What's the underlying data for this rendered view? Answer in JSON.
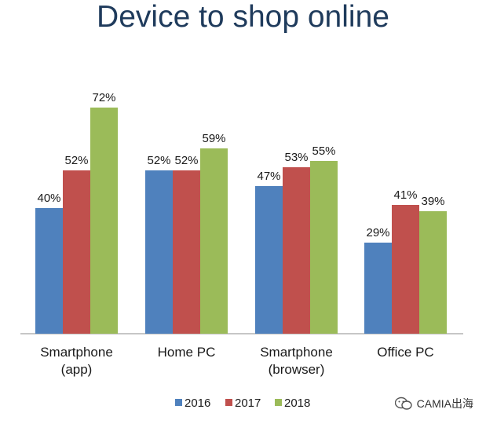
{
  "title": "Device to shop online",
  "watermark": "CAMIA出海",
  "colors": {
    "series_2016": "#4f81bd",
    "series_2017": "#c0504d",
    "series_2018": "#9bbb59",
    "title": "#1f3b5c"
  },
  "chart_data": {
    "type": "bar",
    "title": "Device to shop online",
    "categories": [
      [
        "Smartphone",
        "(app)"
      ],
      [
        "Home PC"
      ],
      [
        "Smartphone",
        "(browser)"
      ],
      [
        "Office PC"
      ]
    ],
    "series": [
      {
        "name": "2016",
        "values": [
          40,
          52,
          47,
          29
        ],
        "labels": [
          "40%",
          "52%",
          "47%",
          "29%"
        ]
      },
      {
        "name": "2017",
        "values": [
          52,
          52,
          53,
          41
        ],
        "labels": [
          "52%",
          "52%",
          "53%",
          "41%"
        ]
      },
      {
        "name": "2018",
        "values": [
          72,
          59,
          55,
          39
        ],
        "labels": [
          "72%",
          "59%",
          "55%",
          "39%"
        ]
      }
    ],
    "ylim": [
      0,
      100
    ],
    "unit": "%",
    "grid": false,
    "legend_position": "bottom"
  }
}
